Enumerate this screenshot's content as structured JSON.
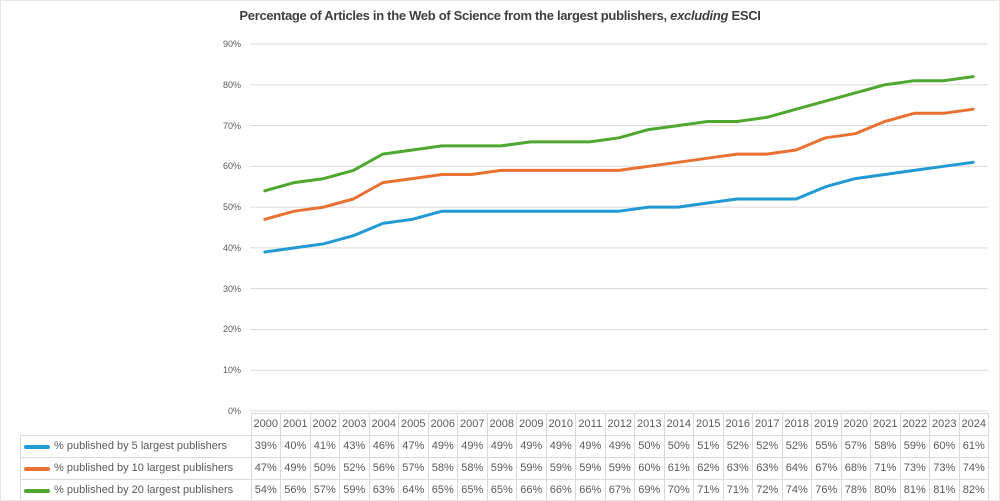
{
  "title": {
    "prefix": "Percentage of Articles in the Web of Science from the largest publishers, ",
    "italic": "excluding",
    "suffix": " ESCI"
  },
  "colors": {
    "title_text": "#3F3F3F",
    "axis_text": "#595959",
    "table_text": "#595959",
    "gridline": "#D9D9D9",
    "table_border": "#D9D9D9",
    "series_blue": "#2199D5",
    "series_orange": "#E97132",
    "series_green": "#4EA72E"
  },
  "chart_data": {
    "type": "line",
    "title": "Percentage of Articles in the Web of Science from the largest publishers, excluding ESCI",
    "categories": [
      "2000",
      "2001",
      "2002",
      "2003",
      "2004",
      "2005",
      "2006",
      "2007",
      "2008",
      "2009",
      "2010",
      "2011",
      "2012",
      "2013",
      "2014",
      "2015",
      "2016",
      "2017",
      "2018",
      "2019",
      "2020",
      "2021",
      "2022",
      "2023",
      "2024"
    ],
    "series": [
      {
        "name": "% published by 5 largest publishers",
        "color": "#2199D5",
        "values": [
          39,
          40,
          41,
          43,
          46,
          47,
          49,
          49,
          49,
          49,
          49,
          49,
          49,
          50,
          50,
          51,
          52,
          52,
          52,
          55,
          57,
          58,
          59,
          60,
          61
        ]
      },
      {
        "name": "% published by 10 largest publishers",
        "color": "#E97132",
        "values": [
          47,
          49,
          50,
          52,
          56,
          57,
          58,
          58,
          59,
          59,
          59,
          59,
          59,
          60,
          61,
          62,
          63,
          63,
          64,
          67,
          68,
          71,
          73,
          73,
          74
        ]
      },
      {
        "name": "% published by 20 largest publishers",
        "color": "#4EA72E",
        "values": [
          54,
          56,
          57,
          59,
          63,
          64,
          65,
          65,
          65,
          66,
          66,
          66,
          67,
          69,
          70,
          71,
          71,
          72,
          74,
          76,
          78,
          80,
          81,
          81,
          82
        ]
      }
    ],
    "ylim": [
      0,
      90
    ],
    "y_tick_step": 10,
    "y_tick_labels": [
      "0%",
      "10%",
      "20%",
      "30%",
      "40%",
      "50%",
      "60%",
      "70%",
      "80%",
      "90%"
    ],
    "value_suffix": "%",
    "grid": "horizontal-only",
    "legend_position": "left-of-data-table",
    "data_table_shown": true
  }
}
